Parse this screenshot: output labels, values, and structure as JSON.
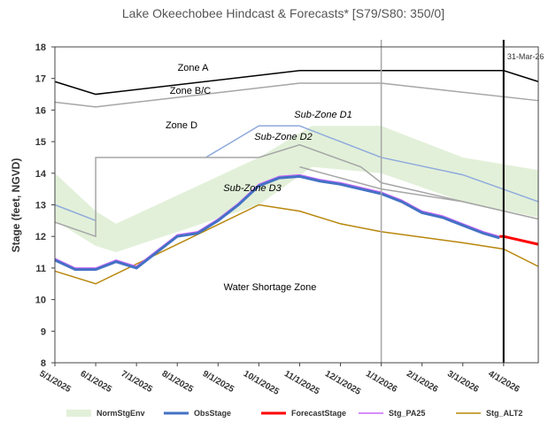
{
  "chart_data": {
    "type": "line",
    "title": "Lake Okeechobee Hindcast & Forecasts* [S79/S80: 350/0]",
    "y_label": "Stage (feet, NGVD)",
    "xlim": [
      0,
      11.85
    ],
    "ylim": [
      8,
      18
    ],
    "yticks": [
      8,
      9,
      10,
      11,
      12,
      13,
      14,
      15,
      16,
      17,
      18
    ],
    "xticks": [
      {
        "value": 0,
        "label": "5/1/2025"
      },
      {
        "value": 1,
        "label": "6/1/2025"
      },
      {
        "value": 2,
        "label": "7/1/2025"
      },
      {
        "value": 3,
        "label": "8/1/2025"
      },
      {
        "value": 4,
        "label": "9/1/2025"
      },
      {
        "value": 5,
        "label": "10/1/2025"
      },
      {
        "value": 6,
        "label": "11/1/2025"
      },
      {
        "value": 7,
        "label": "12/1/2025"
      },
      {
        "value": 8,
        "label": "1/1/2026"
      },
      {
        "value": 9,
        "label": "2/1/2026"
      },
      {
        "value": 10,
        "label": "3/1/2026"
      },
      {
        "value": 11,
        "label": "4/1/2026"
      }
    ],
    "band": {
      "name": "NormStgEnv",
      "color": "#e2f0d9",
      "x": [
        0,
        1,
        1.5,
        5,
        6.3,
        8,
        10,
        11.85
      ],
      "values_high": [
        14.0,
        12.8,
        12.4,
        14.5,
        15.5,
        15.5,
        14.5,
        14.1
      ],
      "values_low": [
        12.5,
        11.7,
        11.5,
        13.0,
        14.2,
        14.0,
        13.1,
        12.6
      ]
    },
    "zone_lines": [
      {
        "color": "#000000",
        "x": [
          0,
          1,
          6,
          11,
          11.85
        ],
        "values": [
          16.9,
          16.5,
          17.25,
          17.25,
          16.9
        ]
      },
      {
        "color": "#a6a6a6",
        "x": [
          0,
          1,
          6,
          8,
          11.85
        ],
        "values": [
          16.25,
          16.1,
          16.85,
          16.85,
          16.3
        ]
      },
      {
        "color": "#8faadc",
        "x": [
          0,
          1,
          null,
          3.7,
          5,
          6,
          8,
          10,
          11.85
        ],
        "values": [
          13.0,
          12.5,
          null,
          14.5,
          15.5,
          15.5,
          14.5,
          13.95,
          13.1
        ]
      },
      {
        "color": "#a6a6a6",
        "x": [
          0,
          1,
          1,
          5,
          6,
          7.5,
          8,
          11.85
        ],
        "values": [
          12.45,
          12.0,
          14.5,
          14.5,
          14.9,
          14.2,
          13.7,
          12.55
        ]
      },
      {
        "color": "#a6a6a6",
        "x": [
          6,
          8,
          10,
          11.85
        ],
        "values": [
          14.2,
          13.5,
          13.1,
          12.55
        ]
      }
    ],
    "series": [
      {
        "name": "ObsStage",
        "color": "#4472c4",
        "width": 3,
        "x": [
          0,
          0.5,
          1,
          1.5,
          2,
          2.5,
          3,
          3.5,
          4,
          4.5,
          5,
          5.5,
          6,
          6.5,
          7,
          7.5,
          8,
          8.5,
          9,
          9.5,
          10,
          10.5,
          10.9
        ],
        "values": [
          11.25,
          10.95,
          10.95,
          11.2,
          11.0,
          11.5,
          12.0,
          12.1,
          12.5,
          13.0,
          13.6,
          13.85,
          13.9,
          13.75,
          13.65,
          13.5,
          13.35,
          13.1,
          12.75,
          12.6,
          12.35,
          12.1,
          11.95
        ]
      },
      {
        "name": "ForecastStage",
        "color": "#ff0000",
        "width": 3,
        "x": [
          10.9,
          11,
          11.85
        ],
        "values": [
          12.0,
          12.0,
          11.75
        ]
      },
      {
        "name": "Stg_PA25",
        "color": "#cc66ff",
        "width": 1.5,
        "x": [
          0,
          0.5,
          1,
          1.5,
          2,
          2.5,
          3,
          3.5,
          4,
          4.5,
          5,
          5.5,
          6,
          6.5,
          7,
          7.5,
          8,
          8.5,
          9,
          9.5,
          10,
          10.5,
          10.9
        ],
        "values": [
          11.3,
          11.0,
          11.0,
          11.25,
          11.05,
          11.55,
          12.05,
          12.15,
          12.55,
          13.05,
          13.65,
          13.9,
          13.95,
          13.8,
          13.7,
          13.55,
          13.4,
          13.15,
          12.8,
          12.65,
          12.4,
          12.15,
          12.0
        ]
      },
      {
        "name": "Stg_ALT2",
        "color": "#b8860b",
        "width": 1.5,
        "x": [
          0,
          1,
          5,
          6,
          7,
          8,
          10,
          11,
          11.85
        ],
        "values": [
          10.9,
          10.5,
          13.0,
          12.8,
          12.4,
          12.15,
          11.8,
          11.6,
          11.05
        ]
      }
    ],
    "markers": [
      {
        "x": 8,
        "color": "#a6a6a6"
      },
      {
        "x": 11,
        "color": "#000000",
        "label": "31-Mar-26"
      }
    ],
    "annotations": [
      "Zone A",
      "Zone B/C",
      "Zone D",
      "Sub-Zone D1",
      "Sub-Zone D2",
      "Sub-Zone D3",
      "Water Shortage Zone"
    ]
  }
}
